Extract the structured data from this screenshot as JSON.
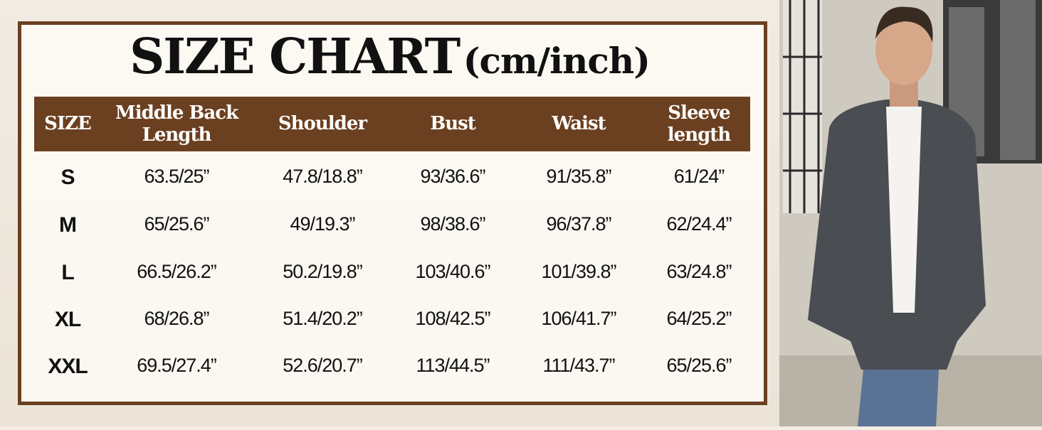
{
  "title": {
    "main": "SIZE CHART",
    "unit": "(cm/inch)"
  },
  "colors": {
    "header_bg": "#6b4020",
    "frame": "#6b4020",
    "background": "#f3ede4"
  },
  "chart_data": {
    "type": "table",
    "columns": [
      "SIZE",
      "Middle Back Length",
      "Shoulder",
      "Bust",
      "Waist",
      "Sleeve length"
    ],
    "rows": [
      [
        "S",
        "63.5/25”",
        "47.8/18.8”",
        "93/36.6”",
        "91/35.8”",
        "61/24”"
      ],
      [
        "M",
        "65/25.6”",
        "49/19.3”",
        "98/38.6”",
        "96/37.8”",
        "62/24.4”"
      ],
      [
        "L",
        "66.5/26.2”",
        "50.2/19.8”",
        "103/40.6”",
        "101/39.8”",
        "63/24.8”"
      ],
      [
        "XL",
        "68/26.8”",
        "51.4/20.2”",
        "108/42.5”",
        "106/41.7”",
        "64/25.2”"
      ],
      [
        "XXL",
        "69.5/27.4”",
        "52.6/20.7”",
        "113/44.5”",
        "111/43.7”",
        "65/25.6”"
      ]
    ]
  },
  "photo": {
    "subject": "model-wearing-grey-shawl-collar-cardigan"
  }
}
